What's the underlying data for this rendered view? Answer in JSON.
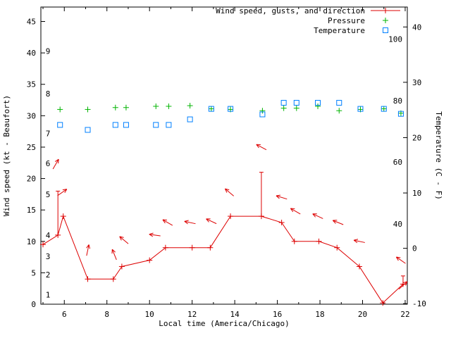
{
  "chart": {
    "legend": {
      "position": "top-right-inside",
      "entries": [
        {
          "label": "Wind speed, gusts, and direction",
          "series": "wind",
          "marker": "line-plus",
          "text_color": "#b22222"
        },
        {
          "label": "Pressure",
          "series": "pressure",
          "marker": "plus",
          "text_color": "#000000"
        },
        {
          "label": "Temperature",
          "series": "temperature",
          "marker": "square",
          "text_color": "#000000"
        }
      ]
    }
  },
  "chart_data": {
    "type": "line",
    "title": "",
    "xlabel": "Local time (America/Chicago)",
    "ylabel_left": "Wind speed (kt - Beaufort)",
    "ylabel_right": "Temperature (C - F)",
    "grid": false,
    "x_range": [
      4.9,
      22.1
    ],
    "y_left_range": [
      0,
      47.3
    ],
    "y_right_range": [
      -10.1,
      43.6
    ],
    "x_ticks": [
      6,
      8,
      10,
      12,
      14,
      16,
      18,
      20,
      22
    ],
    "x_minor_ticks": [
      5,
      7,
      9,
      11,
      13,
      15,
      17,
      19,
      21
    ],
    "y_left_ticks": [
      0,
      5,
      10,
      15,
      20,
      25,
      30,
      35,
      40,
      45
    ],
    "y_right_ticks": [
      -10,
      0,
      10,
      20,
      30,
      40
    ],
    "beaufort_scale_labels": [
      {
        "label": "1",
        "kt": 1.5
      },
      {
        "label": "2",
        "kt": 4.7
      },
      {
        "label": "3",
        "kt": 7.6
      },
      {
        "label": "4",
        "kt": 11.0
      },
      {
        "label": "5",
        "kt": 17.5
      },
      {
        "label": "6",
        "kt": 22.4
      },
      {
        "label": "7",
        "kt": 27.2
      },
      {
        "label": "8",
        "kt": 33.5
      },
      {
        "label": "9",
        "kt": 40.3
      }
    ],
    "fahrenheit_scale_labels": [
      {
        "label": "40",
        "c": 4.4
      },
      {
        "label": "60",
        "c": 15.6
      },
      {
        "label": "80",
        "c": 26.7
      },
      {
        "label": "100",
        "c": 37.8
      }
    ],
    "wind": {
      "name": "Wind speed, gusts, and direction",
      "color": "#dd0000",
      "points": [
        {
          "t": 5.0,
          "speed": 9.5
        },
        {
          "t": 5.7,
          "speed": 11,
          "gust": 18
        },
        {
          "t": 5.95,
          "speed": 14
        },
        {
          "t": 7.1,
          "speed": 4
        },
        {
          "t": 8.3,
          "speed": 4
        },
        {
          "t": 8.7,
          "speed": 6
        },
        {
          "t": 10.0,
          "speed": 7
        },
        {
          "t": 10.75,
          "speed": 9
        },
        {
          "t": 12.0,
          "speed": 9
        },
        {
          "t": 12.85,
          "speed": 9
        },
        {
          "t": 13.8,
          "speed": 14
        },
        {
          "t": 15.25,
          "speed": 14,
          "gust": 21
        },
        {
          "t": 16.2,
          "speed": 13
        },
        {
          "t": 16.8,
          "speed": 10
        },
        {
          "t": 17.95,
          "speed": 10
        },
        {
          "t": 18.8,
          "speed": 9
        },
        {
          "t": 19.85,
          "speed": 6
        },
        {
          "t": 20.95,
          "speed": 0.2
        },
        {
          "t": 21.9,
          "speed": 3.2,
          "gust": 4.5
        }
      ],
      "direction_arrows": [
        {
          "t": 5.6,
          "y": 22.3,
          "angle_deg": 60
        },
        {
          "t": 5.9,
          "y": 17.8,
          "angle_deg": 35
        },
        {
          "t": 7.1,
          "y": 8.6,
          "angle_deg": 78
        },
        {
          "t": 8.35,
          "y": 7.9,
          "angle_deg": 112
        },
        {
          "t": 8.8,
          "y": 10.2,
          "angle_deg": 140
        },
        {
          "t": 10.25,
          "y": 11.0,
          "angle_deg": 172
        },
        {
          "t": 10.85,
          "y": 13.0,
          "angle_deg": 150
        },
        {
          "t": 11.9,
          "y": 13.0,
          "angle_deg": 168
        },
        {
          "t": 12.9,
          "y": 13.2,
          "angle_deg": 155
        },
        {
          "t": 13.75,
          "y": 17.8,
          "angle_deg": 140
        },
        {
          "t": 15.25,
          "y": 25.0,
          "angle_deg": 152
        },
        {
          "t": 16.2,
          "y": 17.0,
          "angle_deg": 163
        },
        {
          "t": 16.85,
          "y": 14.8,
          "angle_deg": 150
        },
        {
          "t": 17.9,
          "y": 14.0,
          "angle_deg": 155
        },
        {
          "t": 18.85,
          "y": 13.0,
          "angle_deg": 158
        },
        {
          "t": 19.85,
          "y": 10.0,
          "angle_deg": 168
        },
        {
          "t": 21.8,
          "y": 7.0,
          "angle_deg": 145
        },
        {
          "t": 21.9,
          "y": 3.0,
          "angle_deg": 42
        }
      ]
    },
    "pressure": {
      "name": "Pressure",
      "color": "#00b400",
      "points_left_axis": [
        {
          "t": 5.8,
          "y": 31.0
        },
        {
          "t": 7.1,
          "y": 31.0
        },
        {
          "t": 8.4,
          "y": 31.3
        },
        {
          "t": 8.9,
          "y": 31.3
        },
        {
          "t": 10.3,
          "y": 31.5
        },
        {
          "t": 10.9,
          "y": 31.5
        },
        {
          "t": 11.9,
          "y": 31.6
        },
        {
          "t": 12.9,
          "y": 31.1
        },
        {
          "t": 13.8,
          "y": 31.0
        },
        {
          "t": 15.3,
          "y": 30.8
        },
        {
          "t": 16.3,
          "y": 31.2
        },
        {
          "t": 16.9,
          "y": 31.2
        },
        {
          "t": 17.9,
          "y": 31.5
        },
        {
          "t": 18.9,
          "y": 30.8
        },
        {
          "t": 19.9,
          "y": 31.0
        },
        {
          "t": 21.0,
          "y": 31.1
        },
        {
          "t": 21.8,
          "y": 30.4
        }
      ]
    },
    "temperature": {
      "name": "Temperature",
      "color": "#0080ff",
      "points_c": [
        {
          "t": 5.8,
          "c": 22.3
        },
        {
          "t": 7.1,
          "c": 21.4
        },
        {
          "t": 8.4,
          "c": 22.3
        },
        {
          "t": 8.9,
          "c": 22.3
        },
        {
          "t": 10.3,
          "c": 22.3
        },
        {
          "t": 10.9,
          "c": 22.3
        },
        {
          "t": 11.9,
          "c": 23.3
        },
        {
          "t": 12.9,
          "c": 25.2
        },
        {
          "t": 13.8,
          "c": 25.2
        },
        {
          "t": 15.3,
          "c": 24.2
        },
        {
          "t": 16.3,
          "c": 26.3
        },
        {
          "t": 16.9,
          "c": 26.3
        },
        {
          "t": 17.9,
          "c": 26.3
        },
        {
          "t": 18.9,
          "c": 26.3
        },
        {
          "t": 19.9,
          "c": 25.2
        },
        {
          "t": 21.0,
          "c": 25.2
        },
        {
          "t": 21.8,
          "c": 24.3
        }
      ]
    },
    "colors": {
      "axis": "#000000",
      "background": "#ffffff"
    }
  }
}
